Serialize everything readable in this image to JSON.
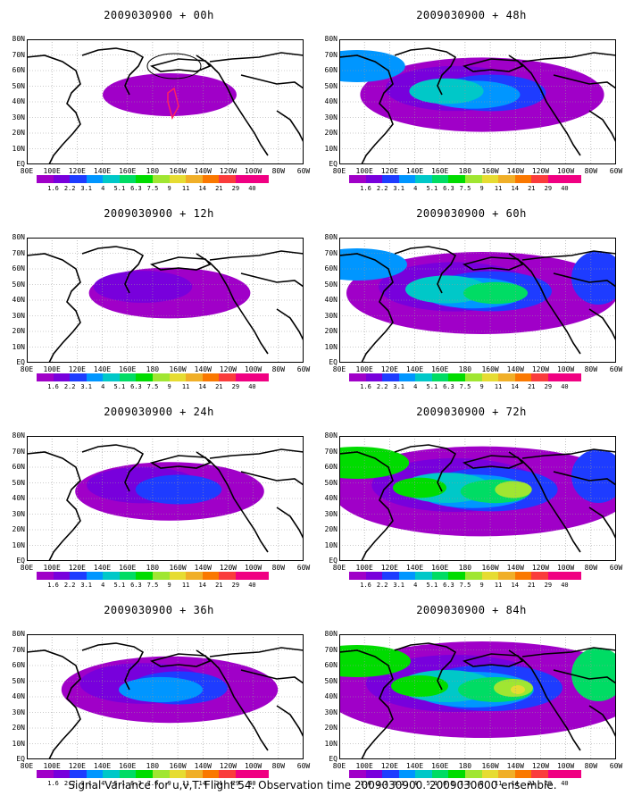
{
  "footer": "Signal Variance for u,v,T. Flight 54. Observation time 2009030900. 2009030600 ensemble.",
  "panels": [
    {
      "title": "2009030900 + 00h",
      "level": 0
    },
    {
      "title": "2009030900 + 12h",
      "level": 1
    },
    {
      "title": "2009030900 + 24h",
      "level": 2
    },
    {
      "title": "2009030900 + 36h",
      "level": 3
    },
    {
      "title": "2009030900 + 48h",
      "level": 4
    },
    {
      "title": "2009030900 + 60h",
      "level": 5
    },
    {
      "title": "2009030900 + 72h",
      "level": 6
    },
    {
      "title": "2009030900 + 84h",
      "level": 7
    }
  ],
  "axes": {
    "y_labels": [
      "80N",
      "70N",
      "60N",
      "50N",
      "40N",
      "30N",
      "20N",
      "10N",
      "EQ"
    ],
    "x_labels": [
      "80E",
      "100E",
      "120E",
      "140E",
      "160E",
      "180",
      "160W",
      "140W",
      "120W",
      "100W",
      "80W",
      "60W"
    ]
  },
  "legend": {
    "labels": [
      "1.6",
      "2.2",
      "3.1",
      "4",
      "5.1",
      "6.3",
      "7.5",
      "9",
      "11",
      "14",
      "21",
      "29",
      "40"
    ],
    "colors": [
      "#a000c8",
      "#7800dc",
      "#1e3cff",
      "#0096ff",
      "#00c8c8",
      "#00dc64",
      "#00dc00",
      "#a0e632",
      "#e6dc32",
      "#f0af28",
      "#fa7800",
      "#fa3c3c",
      "#f00082"
    ]
  }
}
